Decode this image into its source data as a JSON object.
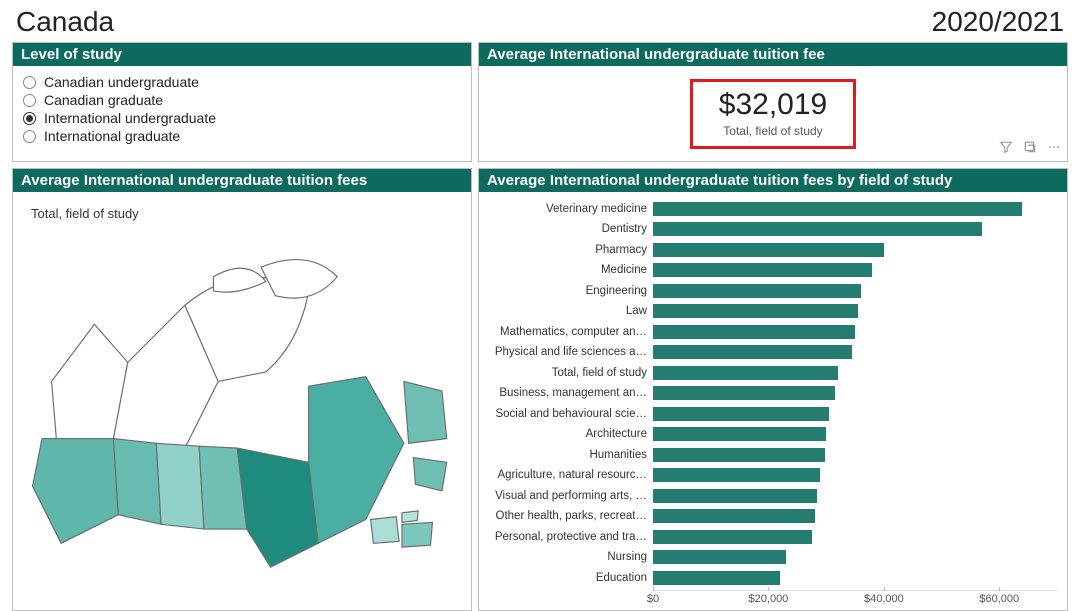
{
  "accent_color": "#0d6a5f",
  "header": {
    "location": "Canada",
    "year": "2020/2021"
  },
  "level_panel": {
    "title": "Level of study",
    "options": [
      {
        "label": "Canadian undergraduate",
        "selected": false
      },
      {
        "label": "Canadian graduate",
        "selected": false
      },
      {
        "label": "International undergraduate",
        "selected": true
      },
      {
        "label": "International graduate",
        "selected": false
      }
    ]
  },
  "kpi_panel": {
    "title": "Average International undergraduate tuition fee",
    "value": "$32,019",
    "subtitle": "Total, field of study",
    "highlight_border_color": "#e11b1b"
  },
  "map_panel": {
    "title": "Average International undergraduate tuition fees",
    "caption": "Total, field of study",
    "stroke": "#6b6b6b",
    "nodata_fill": "#ffffff",
    "palette_low": "#8fd1c8",
    "palette_mid": "#5fb6ab",
    "palette_high": "#1f8b7d",
    "provinces": [
      {
        "code": "BC",
        "fill": "#5fb6ab"
      },
      {
        "code": "AB",
        "fill": "#67bbb0"
      },
      {
        "code": "SK",
        "fill": "#8fd1c8"
      },
      {
        "code": "MB",
        "fill": "#6fbfb4"
      },
      {
        "code": "ON",
        "fill": "#1f8b7d"
      },
      {
        "code": "QC",
        "fill": "#4aaea2"
      },
      {
        "code": "NB",
        "fill": "#a9ddd5"
      },
      {
        "code": "NS",
        "fill": "#7cc7bd"
      },
      {
        "code": "PE",
        "fill": "#b7e3dc"
      },
      {
        "code": "NL",
        "fill": "#6fbfb4"
      },
      {
        "code": "YT",
        "fill": "#ffffff"
      },
      {
        "code": "NT",
        "fill": "#ffffff"
      },
      {
        "code": "NU",
        "fill": "#ffffff"
      }
    ]
  },
  "bar_panel": {
    "title": "Average International undergraduate tuition fees by field of study",
    "bar_color": "#257d72",
    "x_max": 70000,
    "ticks": [
      {
        "value": 0,
        "label": "$0"
      },
      {
        "value": 20000,
        "label": "$20,000"
      },
      {
        "value": 40000,
        "label": "$40,000"
      },
      {
        "value": 60000,
        "label": "$60,000"
      }
    ],
    "rows": [
      {
        "label": "Veterinary medicine",
        "value": 64000
      },
      {
        "label": "Dentistry",
        "value": 57000
      },
      {
        "label": "Pharmacy",
        "value": 40000
      },
      {
        "label": "Medicine",
        "value": 38000
      },
      {
        "label": "Engineering",
        "value": 36000
      },
      {
        "label": "Law",
        "value": 35500
      },
      {
        "label": "Mathematics, computer an…",
        "value": 35000
      },
      {
        "label": "Physical and life sciences a…",
        "value": 34500
      },
      {
        "label": "Total, field of study",
        "value": 32019
      },
      {
        "label": "Business, management an…",
        "value": 31500
      },
      {
        "label": "Social and behavioural scie…",
        "value": 30500
      },
      {
        "label": "Architecture",
        "value": 30000
      },
      {
        "label": "Humanities",
        "value": 29800
      },
      {
        "label": "Agriculture, natural resourc…",
        "value": 29000
      },
      {
        "label": "Visual and performing arts, …",
        "value": 28500
      },
      {
        "label": "Other health, parks, recreat…",
        "value": 28000
      },
      {
        "label": "Personal, protective and tra…",
        "value": 27500
      },
      {
        "label": "Nursing",
        "value": 23000
      },
      {
        "label": "Education",
        "value": 22000
      }
    ]
  }
}
